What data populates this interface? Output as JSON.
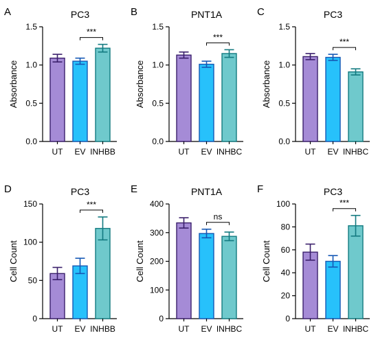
{
  "chart_data": [
    {
      "type": "bar",
      "panel_letter": "A",
      "title": "PC3",
      "ylabel": "Absorbance",
      "categories": [
        "UT",
        "EV",
        "INHBB"
      ],
      "values": [
        1.09,
        1.05,
        1.22
      ],
      "errors": [
        0.05,
        0.04,
        0.05
      ],
      "ylim": [
        0,
        1.5
      ],
      "yticks": [
        0.0,
        0.5,
        1.0,
        1.5
      ],
      "ytick_labels": [
        "0.0",
        "0.5",
        "1.0",
        "1.5"
      ],
      "significance": {
        "from": 1,
        "to": 2,
        "label": "***"
      }
    },
    {
      "type": "bar",
      "panel_letter": "B",
      "title": "PNT1A",
      "ylabel": "Absorbance",
      "categories": [
        "UT",
        "EV",
        "INHBC"
      ],
      "values": [
        1.13,
        1.01,
        1.15
      ],
      "errors": [
        0.04,
        0.04,
        0.05
      ],
      "ylim": [
        0,
        1.5
      ],
      "yticks": [
        0.0,
        0.5,
        1.0,
        1.5
      ],
      "ytick_labels": [
        "0.0",
        "0.5",
        "1.0",
        "1.5"
      ],
      "significance": {
        "from": 1,
        "to": 2,
        "label": "***"
      }
    },
    {
      "type": "bar",
      "panel_letter": "C",
      "title": "PC3",
      "ylabel": "Absorbance",
      "categories": [
        "UT",
        "EV",
        "INHBC"
      ],
      "values": [
        1.11,
        1.1,
        0.91
      ],
      "errors": [
        0.04,
        0.04,
        0.04
      ],
      "ylim": [
        0,
        1.5
      ],
      "yticks": [
        0.0,
        0.5,
        1.0,
        1.5
      ],
      "ytick_labels": [
        "0.0",
        "0.5",
        "1.0",
        "1.5"
      ],
      "significance": {
        "from": 1,
        "to": 2,
        "label": "***"
      }
    },
    {
      "type": "bar",
      "panel_letter": "D",
      "title": "PC3",
      "ylabel": "Cell Count",
      "categories": [
        "UT",
        "EV",
        "INHBB"
      ],
      "values": [
        59,
        69,
        118
      ],
      "errors": [
        8,
        10,
        15
      ],
      "ylim": [
        0,
        150
      ],
      "yticks": [
        0,
        50,
        100,
        150
      ],
      "ytick_labels": [
        "0",
        "50",
        "100",
        "150"
      ],
      "significance": {
        "from": 1,
        "to": 2,
        "label": "***"
      }
    },
    {
      "type": "bar",
      "panel_letter": "E",
      "title": "PNT1A",
      "ylabel": "Cell Count",
      "categories": [
        "UT",
        "EV",
        "INHBC"
      ],
      "values": [
        334,
        297,
        287
      ],
      "errors": [
        18,
        15,
        15
      ],
      "ylim": [
        0,
        400
      ],
      "yticks": [
        0,
        100,
        200,
        300,
        400
      ],
      "ytick_labels": [
        "0",
        "100",
        "200",
        "300",
        "400"
      ],
      "significance": {
        "from": 1,
        "to": 2,
        "label": "ns"
      }
    },
    {
      "type": "bar",
      "panel_letter": "F",
      "title": "PC3",
      "ylabel": "Cell Count",
      "categories": [
        "UT",
        "EV",
        "INHBC"
      ],
      "values": [
        58,
        50,
        81
      ],
      "errors": [
        7,
        5,
        9
      ],
      "ylim": [
        0,
        100
      ],
      "yticks": [
        0,
        20,
        40,
        60,
        80,
        100
      ],
      "ytick_labels": [
        "0",
        "20",
        "40",
        "60",
        "80",
        "100"
      ],
      "significance": {
        "from": 1,
        "to": 2,
        "label": "***"
      }
    }
  ],
  "colors": {
    "bar_fills": [
      "#a58bd6",
      "#27c1fb",
      "#6fc9cc"
    ],
    "bar_strokes": [
      "#3a1f6b",
      "#1558b5",
      "#137a80"
    ],
    "axis": "#000000"
  }
}
